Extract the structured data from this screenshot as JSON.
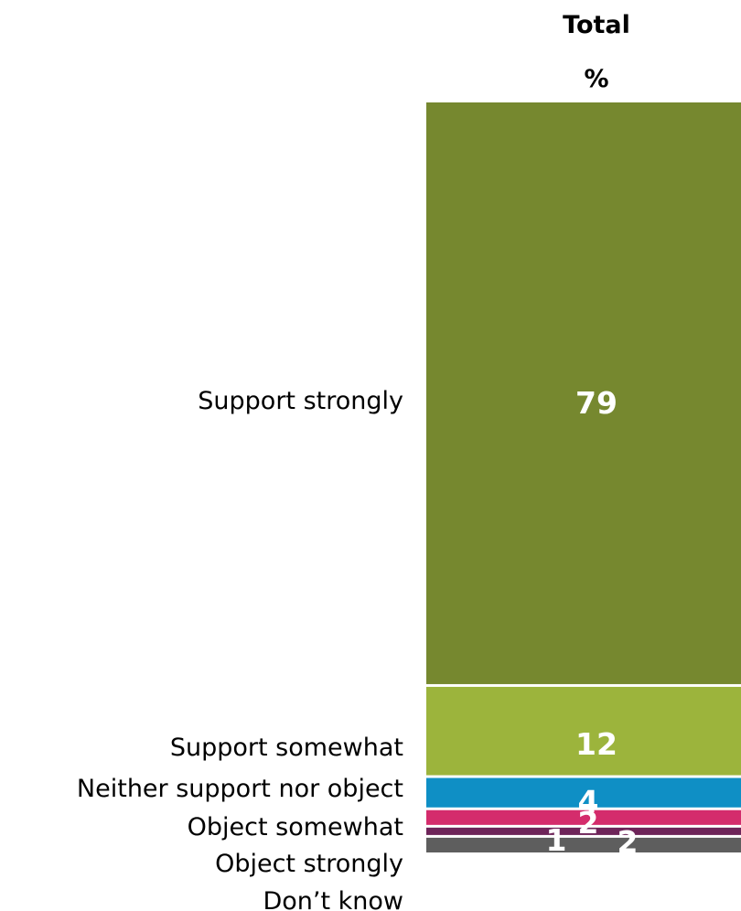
{
  "chart_data": {
    "type": "bar",
    "stacked": true,
    "orientation": "vertical",
    "column_header": "Total",
    "unit_header": "%",
    "categories": [
      "Support strongly",
      "Support somewhat",
      "Neither support nor object",
      "Object somewhat",
      "Object strongly",
      "Don’t know"
    ],
    "values": [
      79,
      12,
      4,
      2,
      1,
      2
    ],
    "value_labels": [
      "79",
      "12",
      "4",
      "2",
      "1",
      "2"
    ],
    "colors": [
      "#76882f",
      "#9cb43c",
      "#0f8fc5",
      "#d42c6c",
      "#6e2459",
      "#5e5e5e"
    ],
    "ylim": [
      0,
      100
    ],
    "grid": false,
    "legend": "none"
  }
}
